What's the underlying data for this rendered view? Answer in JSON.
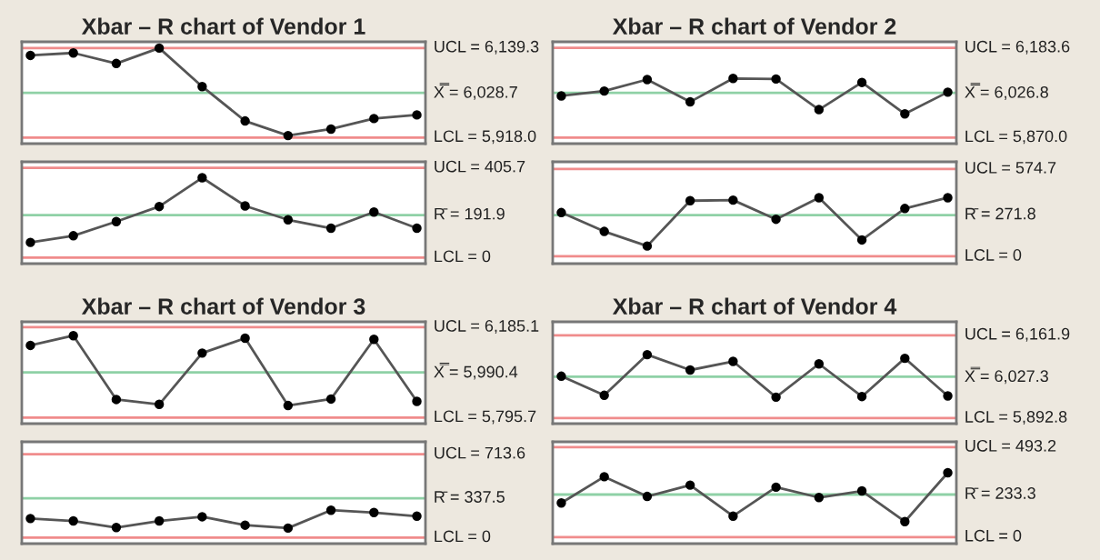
{
  "chart_data": [
    {
      "type": "line",
      "title": "Xbar – R chart of Vendor 1",
      "categories": [
        null,
        null,
        null,
        null,
        null,
        null,
        null,
        null,
        null,
        null
      ],
      "ylim": [
        5903,
        6154.5
      ],
      "tick_labels": false,
      "marker": "circle",
      "series": [
        {
          "color": "#555555",
          "values": [
            6121,
            6127,
            6101,
            6139,
            6044,
            5959,
            5923,
            5939,
            5965,
            5974
          ]
        }
      ],
      "ref_lines": [
        {
          "axis": "y",
          "value": 6139.3,
          "label": "UCL = 6,139.3",
          "color": "#f08c8c"
        },
        {
          "axis": "y",
          "value": 6028.7,
          "label": "X̿ = 6,028.7",
          "color": "#8fd1a6"
        },
        {
          "axis": "y",
          "value": 5918.0,
          "label": "LCL = 5,918.0",
          "color": "#f08c8c"
        }
      ]
    },
    {
      "type": "line",
      "categories": [
        null,
        null,
        null,
        null,
        null,
        null,
        null,
        null,
        null,
        null
      ],
      "ylim": [
        -27,
        433
      ],
      "tick_labels": false,
      "marker": "circle",
      "series": [
        {
          "color": "#555555",
          "values": [
            69,
            99,
            163,
            231,
            361,
            234,
            171,
            133,
            206,
            133
          ]
        }
      ],
      "ref_lines": [
        {
          "axis": "y",
          "value": 405.7,
          "label": "UCL = 405.7",
          "color": "#f08c8c"
        },
        {
          "axis": "y",
          "value": 191.9,
          "label": "R̄ = 191.9",
          "color": "#8fd1a6"
        },
        {
          "axis": "y",
          "value": 0,
          "label": "LCL = 0",
          "color": "#f08c8c"
        }
      ]
    },
    {
      "type": "line",
      "title": "Xbar – R chart of Vendor 2",
      "categories": [
        null,
        null,
        null,
        null,
        null,
        null,
        null,
        null,
        null,
        null
      ],
      "ylim": [
        5849,
        6205
      ],
      "tick_labels": false,
      "marker": "circle",
      "series": [
        {
          "color": "#555555",
          "values": [
            6016,
            6033,
            6073,
            5995,
            6077,
            6075,
            5968,
            6063,
            5953,
            6029
          ]
        }
      ],
      "ref_lines": [
        {
          "axis": "y",
          "value": 6183.6,
          "label": "UCL = 6,183.6",
          "color": "#f08c8c"
        },
        {
          "axis": "y",
          "value": 6026.8,
          "label": "X̿ = 6,026.8",
          "color": "#8fd1a6"
        },
        {
          "axis": "y",
          "value": 5870.0,
          "label": "LCL = 5,870.0",
          "color": "#f08c8c"
        }
      ]
    },
    {
      "type": "line",
      "categories": [
        null,
        null,
        null,
        null,
        null,
        null,
        null,
        null,
        null,
        null
      ],
      "ylim": [
        -48,
        622
      ],
      "tick_labels": false,
      "marker": "circle",
      "series": [
        {
          "color": "#555555",
          "values": [
            288,
            164,
            68,
            366,
            370,
            244,
            386,
            108,
            315,
            386
          ]
        }
      ],
      "ref_lines": [
        {
          "axis": "y",
          "value": 574.7,
          "label": "UCL = 574.7",
          "color": "#f08c8c"
        },
        {
          "axis": "y",
          "value": 271.8,
          "label": "R̄ = 271.8",
          "color": "#8fd1a6"
        },
        {
          "axis": "y",
          "value": 0,
          "label": "LCL = 0",
          "color": "#f08c8c"
        }
      ]
    },
    {
      "type": "line",
      "title": "Xbar – R chart of Vendor 3",
      "categories": [
        null,
        null,
        null,
        null,
        null,
        null,
        null,
        null,
        null,
        null
      ],
      "ylim": [
        5770,
        6208.5
      ],
      "tick_labels": false,
      "marker": "circle",
      "series": [
        {
          "color": "#555555",
          "values": [
            6107,
            6149,
            5874,
            5853,
            6074,
            6138,
            5848,
            5876,
            6133,
            5866
          ]
        }
      ],
      "ref_lines": [
        {
          "axis": "y",
          "value": 6185.1,
          "label": "UCL = 6,185.1",
          "color": "#f08c8c"
        },
        {
          "axis": "y",
          "value": 5990.4,
          "label": "X̿ = 5,990.4",
          "color": "#8fd1a6"
        },
        {
          "axis": "y",
          "value": 5795.7,
          "label": "LCL = 5,795.7",
          "color": "#f08c8c"
        }
      ]
    },
    {
      "type": "line",
      "categories": [
        null,
        null,
        null,
        null,
        null,
        null,
        null,
        null,
        null,
        null
      ],
      "ylim": [
        -51,
        820
      ],
      "tick_labels": false,
      "marker": "circle",
      "series": [
        {
          "color": "#555555",
          "values": [
            164,
            143,
            87,
            143,
            179,
            107,
            82,
            235,
            215,
            184
          ]
        }
      ],
      "ref_lines": [
        {
          "axis": "y",
          "value": 713.6,
          "label": "UCL = 713.6",
          "color": "#f08c8c"
        },
        {
          "axis": "y",
          "value": 337.5,
          "label": "R̄ = 337.5",
          "color": "#8fd1a6"
        },
        {
          "axis": "y",
          "value": 0,
          "label": "LCL = 0",
          "color": "#f08c8c"
        }
      ]
    },
    {
      "type": "line",
      "title": "Xbar – R chart of Vendor 4",
      "categories": [
        null,
        null,
        null,
        null,
        null,
        null,
        null,
        null,
        null,
        null
      ],
      "ylim": [
        5875,
        6205.5
      ],
      "tick_labels": false,
      "marker": "circle",
      "series": [
        {
          "color": "#555555",
          "values": [
            6029,
            5967,
            6099,
            6049,
            6077,
            5961,
            6069,
            5963,
            6087,
            5965
          ]
        }
      ],
      "ref_lines": [
        {
          "axis": "y",
          "value": 6161.9,
          "label": "UCL = 6,161.9",
          "color": "#f08c8c"
        },
        {
          "axis": "y",
          "value": 6027.3,
          "label": "X̿ = 6,027.3",
          "color": "#8fd1a6"
        },
        {
          "axis": "y",
          "value": 5892.8,
          "label": "LCL = 5,892.8",
          "color": "#f08c8c"
        }
      ]
    },
    {
      "type": "line",
      "categories": [
        null,
        null,
        null,
        null,
        null,
        null,
        null,
        null,
        null,
        null
      ],
      "ylim": [
        -36,
        522.5
      ],
      "tick_labels": false,
      "marker": "circle",
      "series": [
        {
          "color": "#555555",
          "values": [
            187,
            331,
            223,
            285,
            115,
            274,
            217,
            253,
            85,
            353
          ]
        }
      ],
      "ref_lines": [
        {
          "axis": "y",
          "value": 493.2,
          "label": "UCL = 493.2",
          "color": "#f08c8c"
        },
        {
          "axis": "y",
          "value": 233.3,
          "label": "R̄ = 233.3",
          "color": "#8fd1a6"
        },
        {
          "axis": "y",
          "value": 0,
          "label": "LCL = 0",
          "color": "#f08c8c"
        }
      ]
    }
  ]
}
